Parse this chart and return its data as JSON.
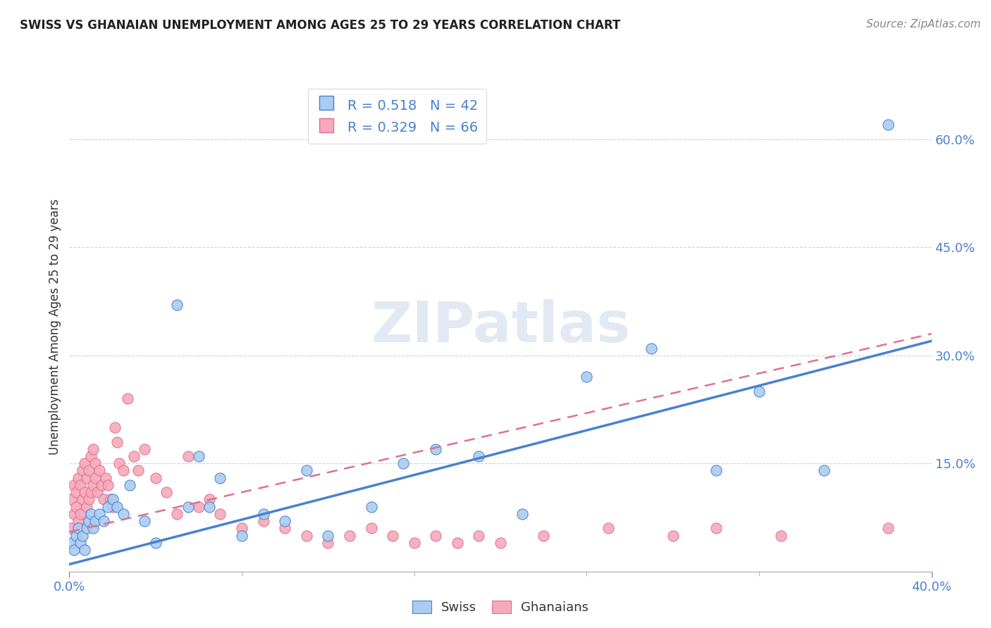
{
  "title": "SWISS VS GHANAIAN UNEMPLOYMENT AMONG AGES 25 TO 29 YEARS CORRELATION CHART",
  "source": "Source: ZipAtlas.com",
  "ylabel": "Unemployment Among Ages 25 to 29 years",
  "xlim": [
    0.0,
    0.4
  ],
  "ylim": [
    0.0,
    0.68
  ],
  "ytick_labels": [
    "15.0%",
    "30.0%",
    "45.0%",
    "60.0%"
  ],
  "ytick_values": [
    0.15,
    0.3,
    0.45,
    0.6
  ],
  "swiss_R": "0.518",
  "swiss_N": "42",
  "ghanaian_R": "0.329",
  "ghanaian_N": "66",
  "swiss_color": "#aaccf0",
  "ghanaian_color": "#f5aabb",
  "swiss_line_color": "#4a80d0",
  "ghanaian_line_color": "#e07090",
  "legend_text_color": "#4a80d0",
  "watermark": "ZIPatlas",
  "watermark_color": "#ccd8e8",
  "swiss_x": [
    0.001,
    0.002,
    0.003,
    0.004,
    0.005,
    0.006,
    0.007,
    0.008,
    0.009,
    0.01,
    0.011,
    0.012,
    0.014,
    0.016,
    0.018,
    0.02,
    0.022,
    0.025,
    0.028,
    0.035,
    0.04,
    0.05,
    0.055,
    0.06,
    0.065,
    0.07,
    0.08,
    0.09,
    0.1,
    0.11,
    0.12,
    0.14,
    0.155,
    0.17,
    0.19,
    0.21,
    0.24,
    0.27,
    0.3,
    0.32,
    0.35,
    0.38
  ],
  "swiss_y": [
    0.04,
    0.03,
    0.05,
    0.06,
    0.04,
    0.05,
    0.03,
    0.06,
    0.07,
    0.08,
    0.06,
    0.07,
    0.08,
    0.07,
    0.09,
    0.1,
    0.09,
    0.08,
    0.12,
    0.07,
    0.04,
    0.37,
    0.09,
    0.16,
    0.09,
    0.13,
    0.05,
    0.08,
    0.07,
    0.14,
    0.05,
    0.09,
    0.15,
    0.17,
    0.16,
    0.08,
    0.27,
    0.31,
    0.14,
    0.25,
    0.14,
    0.62
  ],
  "ghanaian_x": [
    0.001,
    0.001,
    0.002,
    0.002,
    0.003,
    0.003,
    0.004,
    0.004,
    0.005,
    0.005,
    0.006,
    0.006,
    0.007,
    0.007,
    0.008,
    0.008,
    0.009,
    0.009,
    0.01,
    0.01,
    0.011,
    0.011,
    0.012,
    0.012,
    0.013,
    0.014,
    0.015,
    0.016,
    0.017,
    0.018,
    0.019,
    0.02,
    0.021,
    0.022,
    0.023,
    0.025,
    0.027,
    0.03,
    0.032,
    0.035,
    0.04,
    0.045,
    0.05,
    0.055,
    0.06,
    0.065,
    0.07,
    0.08,
    0.09,
    0.1,
    0.11,
    0.12,
    0.13,
    0.14,
    0.15,
    0.16,
    0.17,
    0.18,
    0.19,
    0.2,
    0.22,
    0.25,
    0.28,
    0.3,
    0.33,
    0.38
  ],
  "ghanaian_y": [
    0.06,
    0.1,
    0.08,
    0.12,
    0.09,
    0.11,
    0.07,
    0.13,
    0.08,
    0.12,
    0.1,
    0.14,
    0.11,
    0.15,
    0.09,
    0.13,
    0.1,
    0.14,
    0.11,
    0.16,
    0.12,
    0.17,
    0.13,
    0.15,
    0.11,
    0.14,
    0.12,
    0.1,
    0.13,
    0.12,
    0.1,
    0.09,
    0.2,
    0.18,
    0.15,
    0.14,
    0.24,
    0.16,
    0.14,
    0.17,
    0.13,
    0.11,
    0.08,
    0.16,
    0.09,
    0.1,
    0.08,
    0.06,
    0.07,
    0.06,
    0.05,
    0.04,
    0.05,
    0.06,
    0.05,
    0.04,
    0.05,
    0.04,
    0.05,
    0.04,
    0.05,
    0.06,
    0.05,
    0.06,
    0.05,
    0.06
  ],
  "swiss_trend_x": [
    0.0,
    0.4
  ],
  "swiss_trend_y": [
    0.01,
    0.32
  ],
  "ghanaian_trend_x": [
    0.0,
    0.4
  ],
  "ghanaian_trend_y": [
    0.055,
    0.33
  ]
}
